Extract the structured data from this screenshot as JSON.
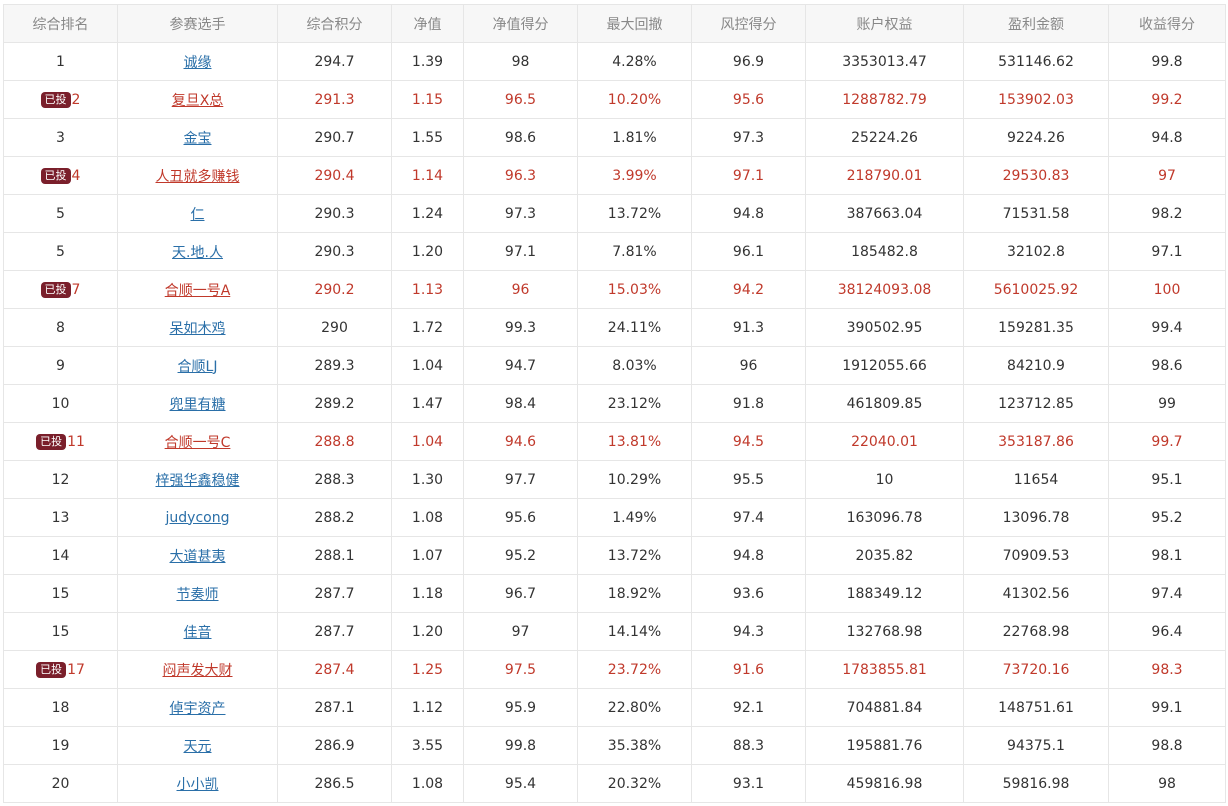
{
  "table": {
    "headers": [
      "综合排名",
      "参赛选手",
      "综合积分",
      "净值",
      "净值得分",
      "最大回撤",
      "风控得分",
      "账户权益",
      "盈利金额",
      "收益得分"
    ],
    "rows": [
      {
        "rank": "1",
        "badge": "",
        "player": "诚缘",
        "score": "294.7",
        "nav": "1.39",
        "nav_score": "98",
        "max_dd": "4.28%",
        "risk_score": "96.9",
        "equity": "3353013.47",
        "profit": "531146.62",
        "return_score": "99.8"
      },
      {
        "rank": "2",
        "badge": "已投",
        "player": "复旦X总",
        "score": "291.3",
        "nav": "1.15",
        "nav_score": "96.5",
        "max_dd": "10.20%",
        "risk_score": "95.6",
        "equity": "1288782.79",
        "profit": "153902.03",
        "return_score": "99.2"
      },
      {
        "rank": "3",
        "badge": "",
        "player": "金宝",
        "score": "290.7",
        "nav": "1.55",
        "nav_score": "98.6",
        "max_dd": "1.81%",
        "risk_score": "97.3",
        "equity": "25224.26",
        "profit": "9224.26",
        "return_score": "94.8"
      },
      {
        "rank": "4",
        "badge": "已投",
        "player": "人丑就多赚钱",
        "score": "290.4",
        "nav": "1.14",
        "nav_score": "96.3",
        "max_dd": "3.99%",
        "risk_score": "97.1",
        "equity": "218790.01",
        "profit": "29530.83",
        "return_score": "97"
      },
      {
        "rank": "5",
        "badge": "",
        "player": "仁",
        "score": "290.3",
        "nav": "1.24",
        "nav_score": "97.3",
        "max_dd": "13.72%",
        "risk_score": "94.8",
        "equity": "387663.04",
        "profit": "71531.58",
        "return_score": "98.2"
      },
      {
        "rank": "5",
        "badge": "",
        "player": "天.地.人",
        "score": "290.3",
        "nav": "1.20",
        "nav_score": "97.1",
        "max_dd": "7.81%",
        "risk_score": "96.1",
        "equity": "185482.8",
        "profit": "32102.8",
        "return_score": "97.1"
      },
      {
        "rank": "7",
        "badge": "已投",
        "player": "合顺一号A",
        "score": "290.2",
        "nav": "1.13",
        "nav_score": "96",
        "max_dd": "15.03%",
        "risk_score": "94.2",
        "equity": "38124093.08",
        "profit": "5610025.92",
        "return_score": "100"
      },
      {
        "rank": "8",
        "badge": "",
        "player": "呆如木鸡",
        "score": "290",
        "nav": "1.72",
        "nav_score": "99.3",
        "max_dd": "24.11%",
        "risk_score": "91.3",
        "equity": "390502.95",
        "profit": "159281.35",
        "return_score": "99.4"
      },
      {
        "rank": "9",
        "badge": "",
        "player": "合顺LJ",
        "score": "289.3",
        "nav": "1.04",
        "nav_score": "94.7",
        "max_dd": "8.03%",
        "risk_score": "96",
        "equity": "1912055.66",
        "profit": "84210.9",
        "return_score": "98.6"
      },
      {
        "rank": "10",
        "badge": "",
        "player": "兜里有糖",
        "score": "289.2",
        "nav": "1.47",
        "nav_score": "98.4",
        "max_dd": "23.12%",
        "risk_score": "91.8",
        "equity": "461809.85",
        "profit": "123712.85",
        "return_score": "99"
      },
      {
        "rank": "11",
        "badge": "已投",
        "player": "合顺一号C",
        "score": "288.8",
        "nav": "1.04",
        "nav_score": "94.6",
        "max_dd": "13.81%",
        "risk_score": "94.5",
        "equity": "22040.01",
        "profit": "353187.86",
        "return_score": "99.7"
      },
      {
        "rank": "12",
        "badge": "",
        "player": "梓强华鑫稳健",
        "score": "288.3",
        "nav": "1.30",
        "nav_score": "97.7",
        "max_dd": "10.29%",
        "risk_score": "95.5",
        "equity": "10",
        "profit": "11654",
        "return_score": "95.1"
      },
      {
        "rank": "13",
        "badge": "",
        "player": "judycong",
        "score": "288.2",
        "nav": "1.08",
        "nav_score": "95.6",
        "max_dd": "1.49%",
        "risk_score": "97.4",
        "equity": "163096.78",
        "profit": "13096.78",
        "return_score": "95.2"
      },
      {
        "rank": "14",
        "badge": "",
        "player": "大道甚夷",
        "score": "288.1",
        "nav": "1.07",
        "nav_score": "95.2",
        "max_dd": "13.72%",
        "risk_score": "94.8",
        "equity": "2035.82",
        "profit": "70909.53",
        "return_score": "98.1"
      },
      {
        "rank": "15",
        "badge": "",
        "player": "节奏师",
        "score": "287.7",
        "nav": "1.18",
        "nav_score": "96.7",
        "max_dd": "18.92%",
        "risk_score": "93.6",
        "equity": "188349.12",
        "profit": "41302.56",
        "return_score": "97.4"
      },
      {
        "rank": "15",
        "badge": "",
        "player": "佳音",
        "score": "287.7",
        "nav": "1.20",
        "nav_score": "97",
        "max_dd": "14.14%",
        "risk_score": "94.3",
        "equity": "132768.98",
        "profit": "22768.98",
        "return_score": "96.4"
      },
      {
        "rank": "17",
        "badge": "已投",
        "player": "闷声发大财",
        "score": "287.4",
        "nav": "1.25",
        "nav_score": "97.5",
        "max_dd": "23.72%",
        "risk_score": "91.6",
        "equity": "1783855.81",
        "profit": "73720.16",
        "return_score": "98.3"
      },
      {
        "rank": "18",
        "badge": "",
        "player": "倬宇资产",
        "score": "287.1",
        "nav": "1.12",
        "nav_score": "95.9",
        "max_dd": "22.80%",
        "risk_score": "92.1",
        "equity": "704881.84",
        "profit": "148751.61",
        "return_score": "99.1"
      },
      {
        "rank": "19",
        "badge": "",
        "player": "天元",
        "score": "286.9",
        "nav": "3.55",
        "nav_score": "99.8",
        "max_dd": "35.38%",
        "risk_score": "88.3",
        "equity": "195881.76",
        "profit": "94375.1",
        "return_score": "98.8"
      },
      {
        "rank": "20",
        "badge": "",
        "player": "小小凯",
        "score": "286.5",
        "nav": "1.08",
        "nav_score": "95.4",
        "max_dd": "20.32%",
        "risk_score": "93.1",
        "equity": "459816.98",
        "profit": "59816.98",
        "return_score": "98"
      }
    ]
  },
  "colors": {
    "link": "#2a6fa8",
    "invested_text": "#c0392b",
    "badge_bg": "#7a1f2b",
    "header_bg": "#f7f7f7",
    "border": "#e6e6e6"
  }
}
